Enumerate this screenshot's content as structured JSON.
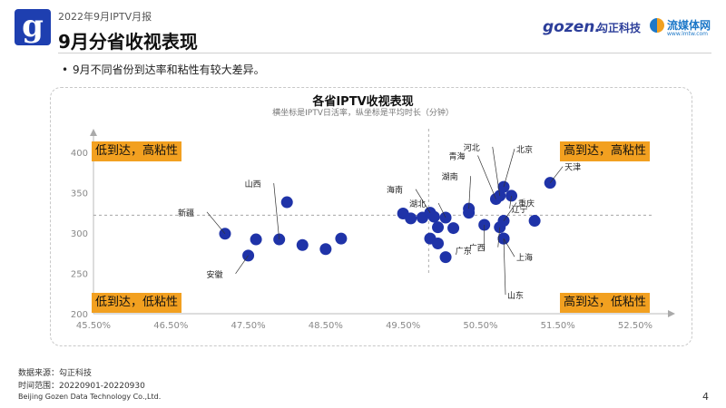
{
  "header": {
    "report_label": "2022年9月IPTV月报",
    "title": "9月分省收视表现",
    "brand_gozen": "gozen.",
    "brand_gozen_cn": "勾正科技",
    "brand_lmt": "流媒体网",
    "brand_lmt_url": "www.lmtw.com"
  },
  "bullet": "9月不同省份到达率和粘性有较大差异。",
  "chart_data": {
    "type": "scatter",
    "title": "各省IPTV收视表现",
    "subtitle": "横坐标是IPTV日活率，纵坐标是平均时长（分钟）",
    "xlabel": "",
    "ylabel": "",
    "xlim": [
      45.5,
      52.5
    ],
    "ylim": [
      200,
      420
    ],
    "x_ticks": [
      "45.50%",
      "46.50%",
      "47.50%",
      "48.50%",
      "49.50%",
      "50.50%",
      "51.50%",
      "52.50%"
    ],
    "y_ticks": [
      "200",
      "250",
      "300",
      "350",
      "400"
    ],
    "x_divider": 49.83,
    "y_divider": 322,
    "point_color": "#1f33a8",
    "points": [
      {
        "x": 47.2,
        "y": 299,
        "label": "新疆"
      },
      {
        "x": 47.6,
        "y": 292,
        "label": ""
      },
      {
        "x": 47.5,
        "y": 272,
        "label": "安徽"
      },
      {
        "x": 47.9,
        "y": 292,
        "label": "山西"
      },
      {
        "x": 48.0,
        "y": 338,
        "label": ""
      },
      {
        "x": 48.2,
        "y": 285,
        "label": ""
      },
      {
        "x": 48.5,
        "y": 280,
        "label": ""
      },
      {
        "x": 48.7,
        "y": 293,
        "label": ""
      },
      {
        "x": 49.5,
        "y": 324,
        "label": ""
      },
      {
        "x": 49.6,
        "y": 318,
        "label": ""
      },
      {
        "x": 49.75,
        "y": 319,
        "label": ""
      },
      {
        "x": 49.85,
        "y": 325,
        "label": "海南"
      },
      {
        "x": 49.9,
        "y": 320,
        "label": ""
      },
      {
        "x": 49.95,
        "y": 307,
        "label": ""
      },
      {
        "x": 49.85,
        "y": 293,
        "label": ""
      },
      {
        "x": 49.95,
        "y": 287,
        "label": ""
      },
      {
        "x": 50.05,
        "y": 319,
        "label": "湖北"
      },
      {
        "x": 50.05,
        "y": 270,
        "label": ""
      },
      {
        "x": 50.15,
        "y": 306,
        "label": ""
      },
      {
        "x": 50.35,
        "y": 325,
        "label": ""
      },
      {
        "x": 50.35,
        "y": 330,
        "label": "湖南"
      },
      {
        "x": 50.55,
        "y": 310,
        "label": "广东"
      },
      {
        "x": 50.7,
        "y": 342,
        "label": "青海"
      },
      {
        "x": 50.75,
        "y": 346,
        "label": "河北"
      },
      {
        "x": 50.8,
        "y": 357,
        "label": "北京"
      },
      {
        "x": 50.9,
        "y": 346,
        "label": "辽宁"
      },
      {
        "x": 50.75,
        "y": 307,
        "label": "广西"
      },
      {
        "x": 50.8,
        "y": 315,
        "label": "重庆"
      },
      {
        "x": 50.8,
        "y": 293,
        "label": "上海"
      },
      {
        "x": 50.8,
        "y": 293,
        "label": "山东"
      },
      {
        "x": 51.2,
        "y": 315,
        "label": ""
      },
      {
        "x": 51.4,
        "y": 362,
        "label": "天津"
      }
    ]
  },
  "quadrants": {
    "top_left": "低到达，高粘性",
    "top_right": "高到达，高粘性",
    "bottom_left": "低到达，低粘性",
    "bottom_right": "高到达，低粘性"
  },
  "footer": {
    "source": "数据来源：勾正科技",
    "period": "时间范围：20220901-20220930",
    "company": "Beijing Gozen Data Technology Co.,Ltd.",
    "page": "4"
  }
}
